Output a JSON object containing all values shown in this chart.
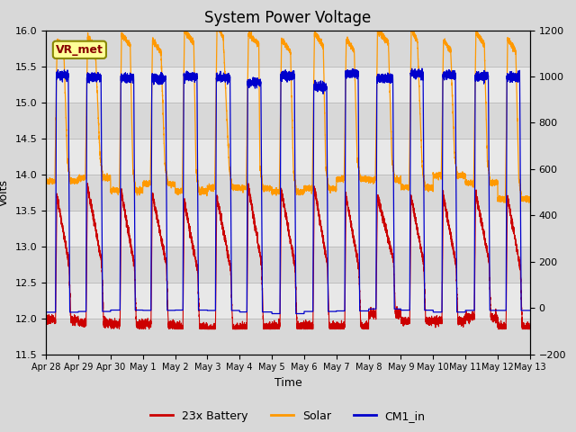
{
  "title": "System Power Voltage",
  "xlabel": "Time",
  "ylabel": "Volts",
  "ylim_left": [
    11.5,
    16.0
  ],
  "ylim_right": [
    -200,
    1200
  ],
  "yticks_left": [
    11.5,
    12.0,
    12.5,
    13.0,
    13.5,
    14.0,
    14.5,
    15.0,
    15.5,
    16.0
  ],
  "yticks_right": [
    -200,
    0,
    200,
    400,
    600,
    800,
    1000,
    1200
  ],
  "xtick_labels": [
    "Apr 28",
    "Apr 29",
    "Apr 30",
    "May 1",
    "May 2",
    "May 3",
    "May 4",
    "May 5",
    "May 6",
    "May 7",
    "May 8",
    "May 9",
    "May 10",
    "May 11",
    "May 12",
    "May 13"
  ],
  "annotation_text": "VR_met",
  "legend_labels": [
    "23x Battery",
    "Solar",
    "CM1_in"
  ],
  "legend_colors": [
    "#cc0000",
    "#ff9900",
    "#0000cc"
  ],
  "background_color": "#d8d8d8",
  "band_color": "#e8e8e8",
  "title_fontsize": 12,
  "label_fontsize": 9,
  "tick_fontsize": 8
}
